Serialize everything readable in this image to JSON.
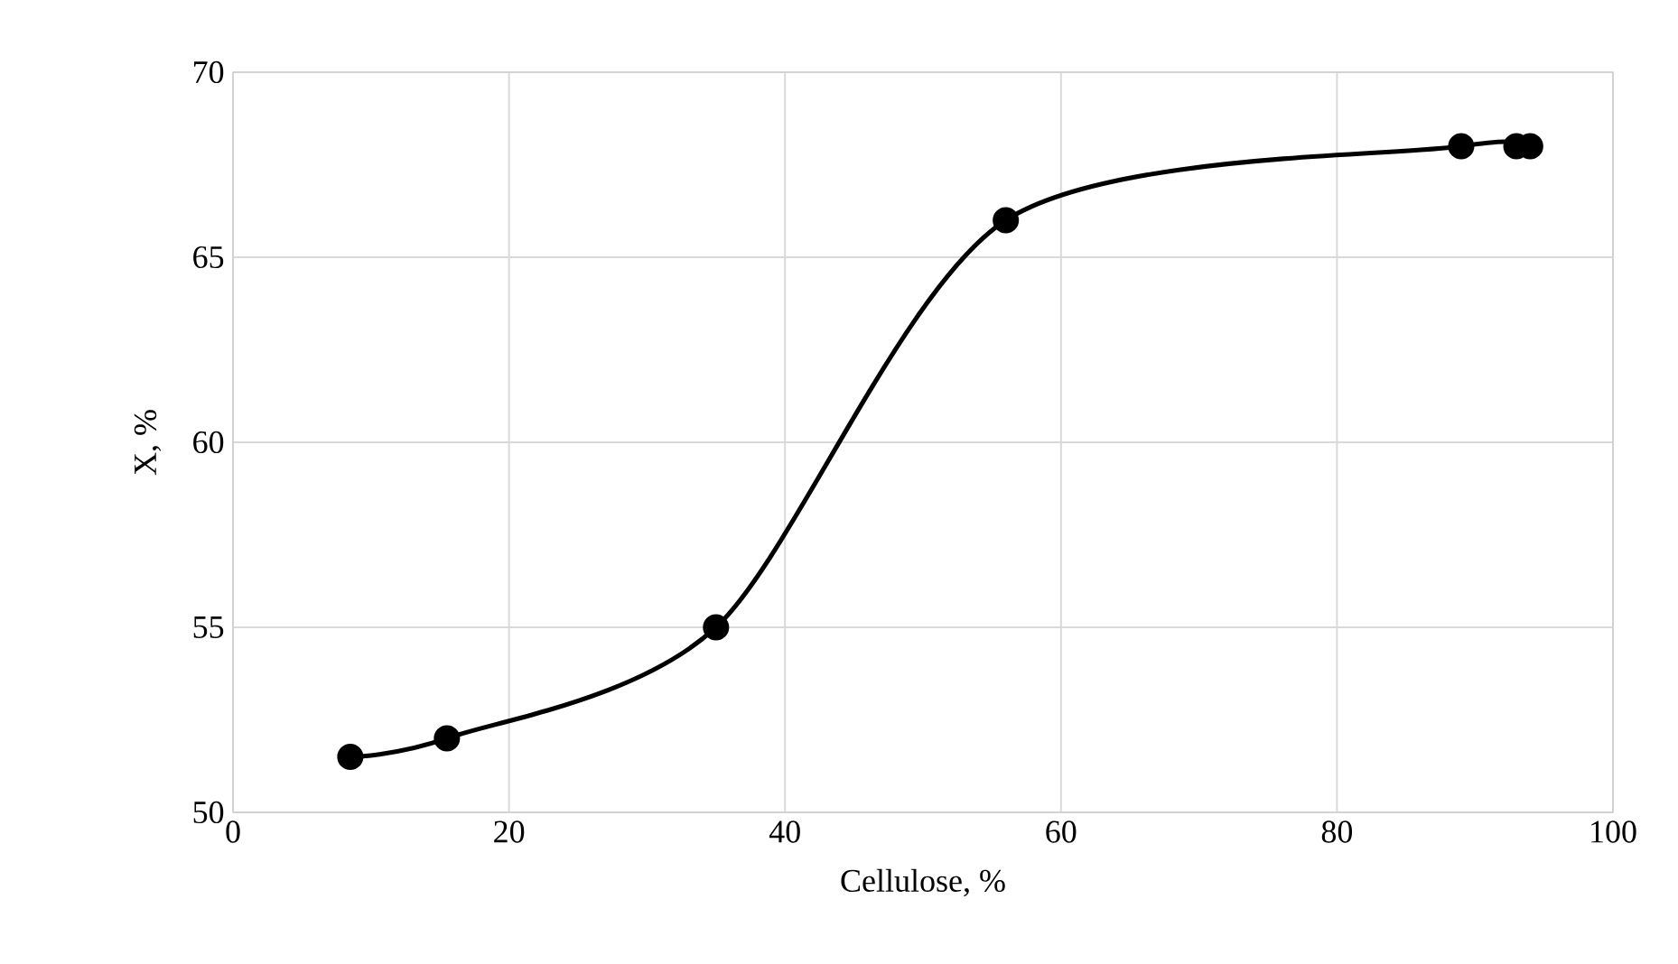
{
  "chart_data": {
    "type": "line",
    "xlabel": "Cellulose, %",
    "ylabel": "X, %",
    "x": [
      8.5,
      15.5,
      35,
      56,
      89,
      93,
      94
    ],
    "series": [
      {
        "color": "#000000",
        "values": [
          51.5,
          52,
          55,
          66,
          68,
          68,
          68
        ]
      }
    ],
    "xlim": [
      0,
      100
    ],
    "ylim": [
      50,
      70
    ],
    "xticks": [
      0,
      20,
      40,
      60,
      80,
      100
    ],
    "yticks": [
      50,
      55,
      60,
      65,
      70
    ],
    "grid": true,
    "marker": "circle",
    "line_style": "solid"
  }
}
